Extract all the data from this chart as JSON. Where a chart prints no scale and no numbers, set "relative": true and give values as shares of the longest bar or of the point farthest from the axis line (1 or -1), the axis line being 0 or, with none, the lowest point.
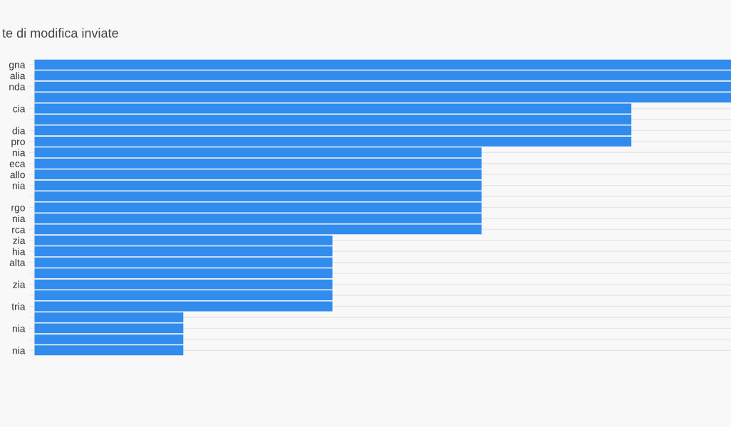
{
  "chart_data": {
    "type": "bar",
    "orientation": "horizontal",
    "relative": true,
    "title": "te di modifica inviate",
    "categories": [
      "gna",
      "alia",
      "nda",
      null,
      "cia",
      null,
      "dia",
      "pro",
      "nia",
      "eca",
      "allo",
      "nia",
      null,
      "rgo",
      "nia",
      "rca",
      "zia",
      "hia",
      "alta",
      null,
      "zia",
      null,
      "tria",
      null,
      "nia",
      null,
      "nia"
    ],
    "values": [
      1,
      1,
      1,
      1,
      0.857,
      0.857,
      0.857,
      0.857,
      0.642,
      0.642,
      0.642,
      0.642,
      0.642,
      0.642,
      0.642,
      0.642,
      0.428,
      0.428,
      0.428,
      0.428,
      0.428,
      0.428,
      0.428,
      0.214,
      0.214,
      0.214,
      0.214
    ],
    "color": "#318ced",
    "grid": "y",
    "legend": false
  }
}
